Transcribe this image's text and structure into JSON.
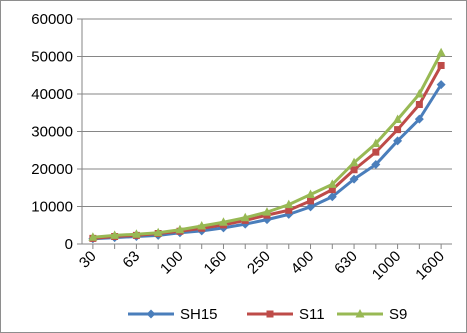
{
  "chart_data": {
    "type": "line",
    "title": "",
    "xlabel": "",
    "ylabel": "",
    "categories": [
      "30",
      "",
      "63",
      "",
      "100",
      "",
      "160",
      "",
      "250",
      "",
      "400",
      "",
      "630",
      "",
      "1000",
      "",
      "1600"
    ],
    "x_tick_labels": [
      "30",
      "63",
      "100",
      "160",
      "250",
      "400",
      "630",
      "1000",
      "1600"
    ],
    "ylim": [
      0,
      60000
    ],
    "yticks": [
      0,
      10000,
      20000,
      30000,
      40000,
      50000,
      60000
    ],
    "grid": "horizontal",
    "legend": "bottom",
    "series": [
      {
        "name": "SH15",
        "color": "#4a7ebb",
        "marker": "diamond",
        "values": [
          1400,
          1700,
          2000,
          2300,
          3000,
          3500,
          4300,
          5300,
          6500,
          7900,
          9900,
          12600,
          17300,
          21200,
          27500,
          33300,
          42500
        ]
      },
      {
        "name": "S11",
        "color": "#be4b48",
        "marker": "square",
        "values": [
          1500,
          2000,
          2300,
          2800,
          3400,
          4200,
          5100,
          6300,
          7700,
          9000,
          11500,
          14500,
          19800,
          24500,
          30500,
          37200,
          47600
        ]
      },
      {
        "name": "S9",
        "color": "#98b954",
        "marker": "triangle",
        "values": [
          1800,
          2300,
          2600,
          3000,
          3800,
          4800,
          5800,
          7000,
          8500,
          10500,
          13200,
          15900,
          21700,
          26800,
          33200,
          40000,
          51000
        ]
      }
    ]
  }
}
